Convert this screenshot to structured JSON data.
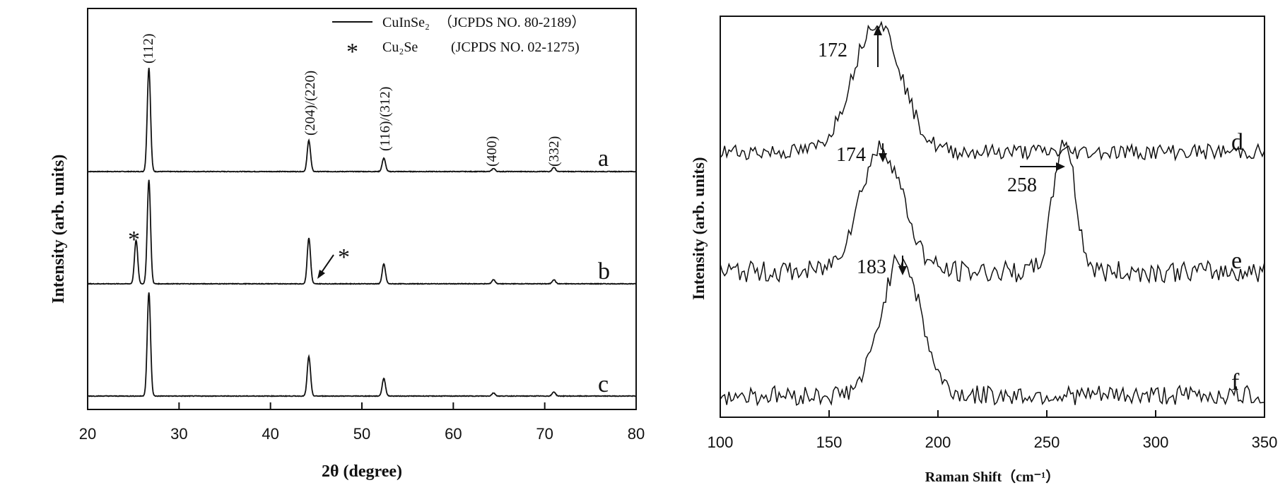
{
  "chart_data": [
    {
      "type": "line",
      "panel": "xrd",
      "xlabel": "2θ (degree)",
      "ylabel": "Intensity (arb. units)",
      "xlim": [
        20,
        80
      ],
      "xticks": [
        20,
        30,
        40,
        50,
        60,
        70,
        80
      ],
      "legend": {
        "position": "top-right",
        "entries": [
          {
            "marker": "line",
            "name": "CuInSe₂",
            "ref": "（JCPDS NO. 80-2189）"
          },
          {
            "marker": "*",
            "name": "Cu₂Se",
            "ref": "(JCPDS NO. 02-1275)"
          }
        ]
      },
      "reflections": [
        {
          "label": "(112)",
          "x": 26.7
        },
        {
          "label": "(204)/(220)",
          "x": 44.2
        },
        {
          "label": "(116)/(312)",
          "x": 52.4
        },
        {
          "label": "(400)",
          "x": 64.4
        },
        {
          "label": "(332)",
          "x": 71.0
        }
      ],
      "series": [
        {
          "name": "a",
          "peaks": [
            {
              "x": 26.7,
              "height": 1.0
            },
            {
              "x": 44.2,
              "height": 0.3
            },
            {
              "x": 52.4,
              "height": 0.13
            },
            {
              "x": 64.4,
              "height": 0.03
            },
            {
              "x": 71.0,
              "height": 0.04
            }
          ]
        },
        {
          "name": "b",
          "peaks": [
            {
              "x": 25.3,
              "height": 0.42
            },
            {
              "x": 26.7,
              "height": 1.0
            },
            {
              "x": 44.2,
              "height": 0.44
            },
            {
              "x": 52.4,
              "height": 0.19
            },
            {
              "x": 64.4,
              "height": 0.04
            },
            {
              "x": 71.0,
              "height": 0.04
            }
          ]
        },
        {
          "name": "c",
          "peaks": [
            {
              "x": 26.7,
              "height": 1.0
            },
            {
              "x": 44.2,
              "height": 0.38
            },
            {
              "x": 52.4,
              "height": 0.17
            },
            {
              "x": 64.4,
              "height": 0.03
            },
            {
              "x": 71.0,
              "height": 0.04
            }
          ]
        }
      ],
      "annotations": [
        {
          "series": "b",
          "text": "*",
          "x": 25.3
        },
        {
          "series": "b",
          "text": "*",
          "x": 45.0
        }
      ]
    },
    {
      "type": "line",
      "panel": "raman",
      "xlabel": "Raman Shift（cm⁻¹）",
      "ylabel": "Intensity (arb. units)",
      "xlim": [
        100,
        350
      ],
      "xticks": [
        100,
        150,
        200,
        250,
        300,
        350
      ],
      "series": [
        {
          "name": "d",
          "peaks": [
            {
              "x": 172,
              "height": 1.0,
              "width": 11
            }
          ]
        },
        {
          "name": "e",
          "peaks": [
            {
              "x": 174,
              "height": 0.7,
              "width": 10
            },
            {
              "x": 258,
              "height": 0.75,
              "width": 5
            }
          ]
        },
        {
          "name": "f",
          "peaks": [
            {
              "x": 183,
              "height": 0.85,
              "width": 9
            }
          ]
        }
      ],
      "annotations": [
        {
          "series": "d",
          "text": "172",
          "x": 172
        },
        {
          "series": "e",
          "text": "174",
          "x": 174
        },
        {
          "series": "e",
          "text": "258",
          "x": 258
        },
        {
          "series": "f",
          "text": "183",
          "x": 183
        }
      ]
    }
  ]
}
